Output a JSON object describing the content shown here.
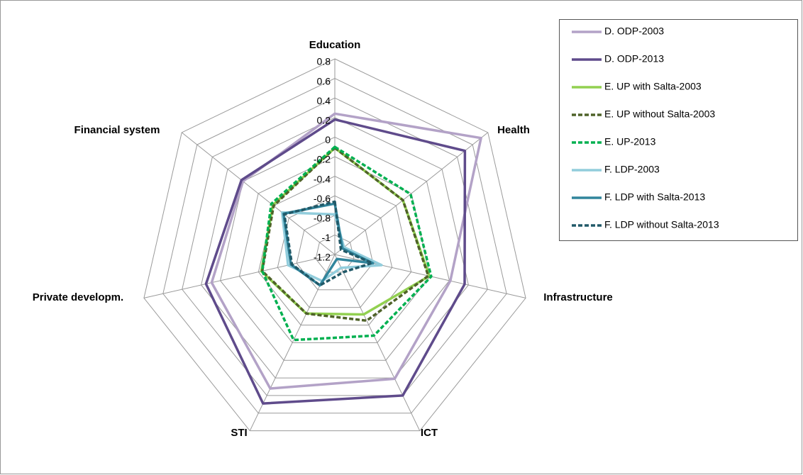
{
  "chart_data": {
    "type": "radar",
    "categories": [
      "Education",
      "Health",
      "Infrastructure",
      "ICT",
      "STI",
      "Private developm.",
      "Financial system"
    ],
    "ylim": [
      -1.2,
      0.8
    ],
    "yticks": [
      -1.2,
      -1,
      -0.8,
      -0.6,
      -0.4,
      -0.2,
      0,
      0.2,
      0.4,
      0.6,
      0.8
    ],
    "grid": true,
    "legend": "right",
    "series": [
      {
        "name": "D. ODP-2003",
        "color": "#b3a2c7",
        "dashed": false,
        "values": [
          0.24,
          0.71,
          0.01,
          0.21,
          0.32,
          0.09,
          0.0
        ]
      },
      {
        "name": "D. ODP-2013",
        "color": "#5f4b8b",
        "dashed": false,
        "values": [
          0.18,
          0.5,
          0.16,
          0.4,
          0.49,
          0.15,
          0.02
        ]
      },
      {
        "name": "E. UP with Salta-2003",
        "color": "#92d050",
        "dashed": false,
        "values": [
          -0.11,
          -0.31,
          -0.21,
          -0.52,
          -0.53,
          -0.43,
          -0.39
        ]
      },
      {
        "name": "E. UP without Salta-2003",
        "color": "#4f6228",
        "dashed": true,
        "values": [
          -0.11,
          -0.31,
          -0.22,
          -0.45,
          -0.53,
          -0.44,
          -0.4
        ]
      },
      {
        "name": "E. UP-2013",
        "color": "#00b050",
        "dashed": true,
        "values": [
          -0.1,
          -0.21,
          -0.19,
          -0.28,
          -0.23,
          -0.44,
          -0.37
        ]
      },
      {
        "name": "F. LDP-2003",
        "color": "#92cddc",
        "dashed": false,
        "values": [
          -0.79,
          -1.08,
          -0.71,
          -1.05,
          -0.9,
          -0.71,
          -0.51
        ]
      },
      {
        "name": "F. LDP with Salta-2013",
        "color": "#31859c",
        "dashed": false,
        "values": [
          -0.68,
          -1.1,
          -0.8,
          -1.15,
          -0.85,
          -0.74,
          -0.53
        ]
      },
      {
        "name": "F. LDP without Salta-2013",
        "color": "#215968",
        "dashed": true,
        "values": [
          -0.66,
          -1.12,
          -0.81,
          -1.0,
          -0.85,
          -0.75,
          -0.54
        ]
      }
    ]
  }
}
